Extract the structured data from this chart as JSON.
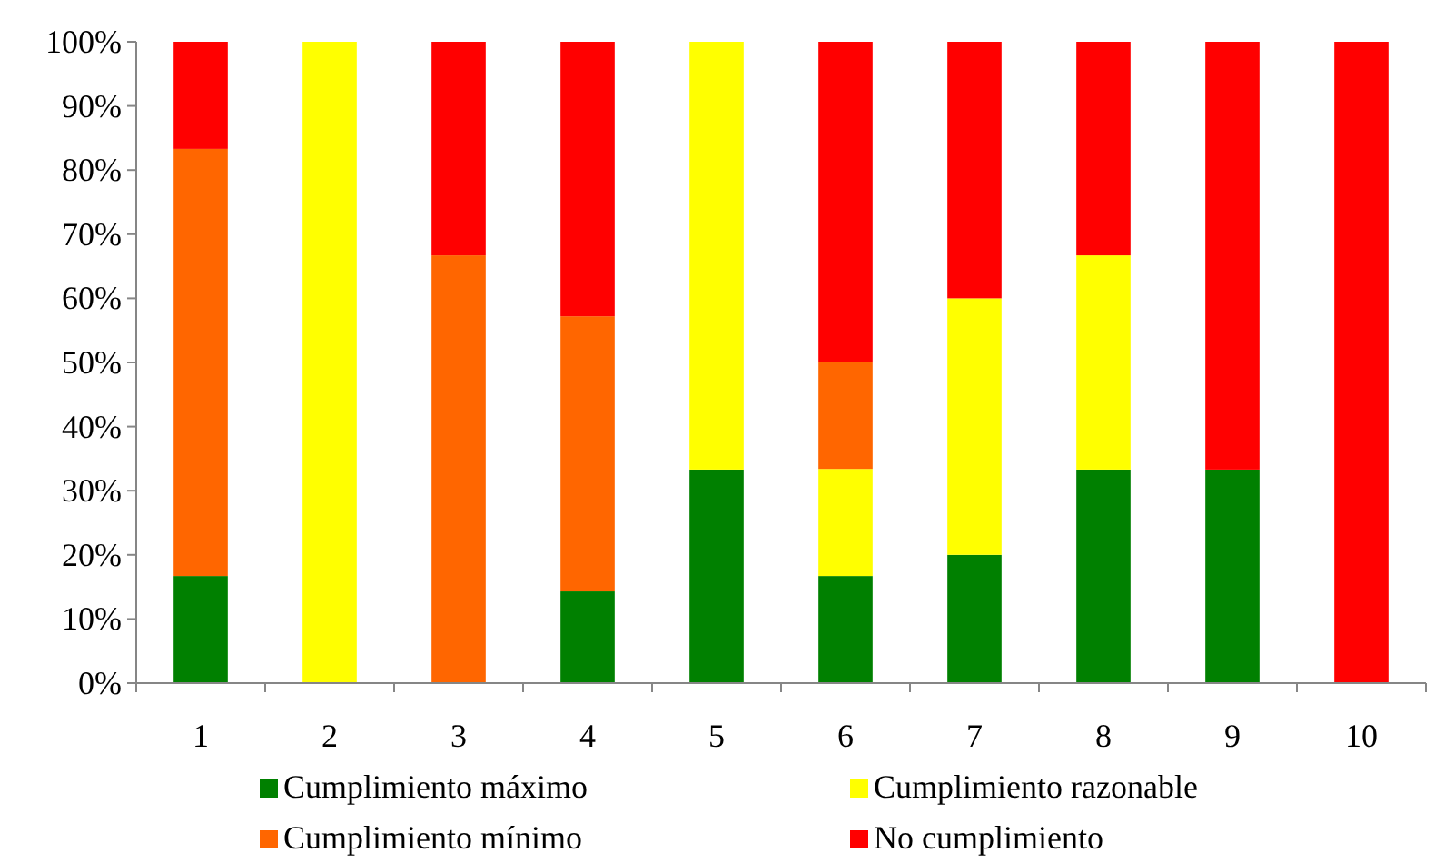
{
  "chart_data": {
    "type": "bar",
    "stacked": true,
    "categories": [
      "1",
      "2",
      "3",
      "4",
      "5",
      "6",
      "7",
      "8",
      "9",
      "10"
    ],
    "series": [
      {
        "name": "Cumplimiento máximo",
        "color": "#008000",
        "values": [
          16.7,
          0,
          0,
          14.3,
          33.3,
          16.7,
          20,
          33.3,
          33.3,
          0
        ]
      },
      {
        "name": "Cumplimiento razonable",
        "color": "#ffff00",
        "values": [
          0,
          100,
          0,
          0,
          66.7,
          16.7,
          40,
          33.4,
          0,
          0
        ]
      },
      {
        "name": "Cumplimiento mínimo",
        "color": "#ff6600",
        "values": [
          66.6,
          0,
          66.7,
          42.9,
          0,
          16.6,
          0,
          0,
          0,
          0
        ]
      },
      {
        "name": "No cumplimiento",
        "color": "#ff0000",
        "values": [
          16.7,
          0,
          33.3,
          42.8,
          0,
          50,
          40,
          33.3,
          66.7,
          100
        ]
      }
    ],
    "ylim": [
      0,
      100
    ],
    "yticks": [
      {
        "value": 0,
        "label": "0%"
      },
      {
        "value": 10,
        "label": "10%"
      },
      {
        "value": 20,
        "label": "20%"
      },
      {
        "value": 30,
        "label": "30%"
      },
      {
        "value": 40,
        "label": "40%"
      },
      {
        "value": 50,
        "label": "50%"
      },
      {
        "value": 60,
        "label": "60%"
      },
      {
        "value": 70,
        "label": "70%"
      },
      {
        "value": 80,
        "label": "80%"
      },
      {
        "value": 90,
        "label": "90%"
      },
      {
        "value": 100,
        "label": "100%"
      }
    ],
    "grid": false,
    "legend": "bottom"
  }
}
